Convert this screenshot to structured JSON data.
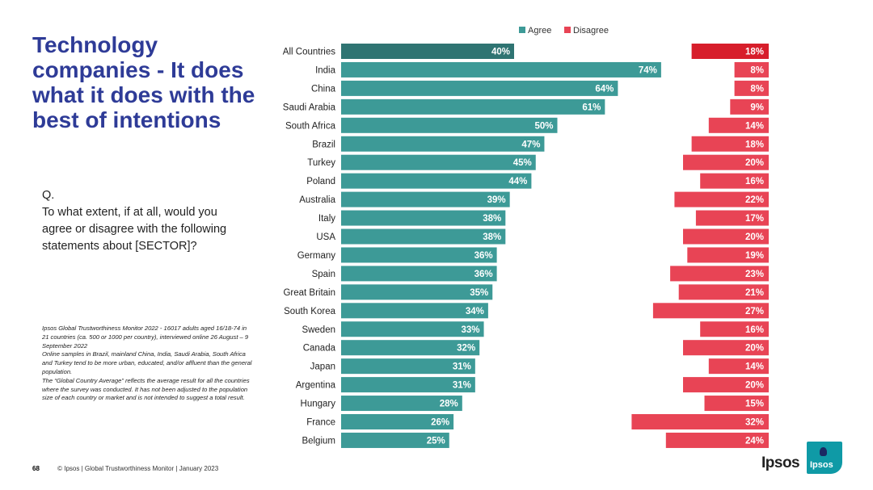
{
  "title": "Technology companies - It does what it does with the best of intentions",
  "question": {
    "label": "Q.",
    "text": "To what extent, if at all, would you agree or disagree with the following statements about [SECTOR]?"
  },
  "note": {
    "line1": "Ipsos Global Trustworthiness Monitor 2022 - 16017 adults aged 16/18-74 in 21 countries (ca. 500 or 1000 per country), interviewed online 26 August – 9 September 2022",
    "line2": "Online samples in Brazil, mainland China, India, Saudi Arabia, South Africa and Turkey tend to be more urban, educated, and/or affluent than the general population.",
    "line3": "The “Global Country Average” reflects the average result for all the countries where the survey was conducted. It has not been adjusted to the population size of each country or market and is not intended to suggest a total result."
  },
  "footer": {
    "page": "68",
    "text": "© Ipsos | Global Trustworthiness Monitor | January 2023"
  },
  "logo": {
    "wordmark": "Ipsos",
    "badge": "Ipsos"
  },
  "colors": {
    "agree": "#3d9a97",
    "agree_total": "#2f7472",
    "disagree": "#e84455",
    "disagree_total": "#d71e2b"
  },
  "chart_data": {
    "type": "bar",
    "orientation": "horizontal",
    "title": "",
    "legend_position": "top",
    "categories": [
      "All Countries",
      "India",
      "China",
      "Saudi Arabia",
      "South Africa",
      "Brazil",
      "Turkey",
      "Poland",
      "Australia",
      "Italy",
      "USA",
      "Germany",
      "Spain",
      "Great Britain",
      "South Korea",
      "Sweden",
      "Canada",
      "Japan",
      "Argentina",
      "Hungary",
      "France",
      "Belgium"
    ],
    "series": [
      {
        "name": "Agree",
        "values": [
          40,
          74,
          64,
          61,
          50,
          47,
          45,
          44,
          39,
          38,
          38,
          36,
          36,
          35,
          34,
          33,
          32,
          31,
          31,
          28,
          26,
          25
        ]
      },
      {
        "name": "Disagree",
        "values": [
          18,
          8,
          8,
          9,
          14,
          18,
          20,
          16,
          22,
          17,
          20,
          19,
          23,
          21,
          27,
          16,
          20,
          14,
          20,
          15,
          32,
          24
        ]
      }
    ],
    "value_format": "{v}%",
    "xlim": [
      0,
      100
    ]
  }
}
